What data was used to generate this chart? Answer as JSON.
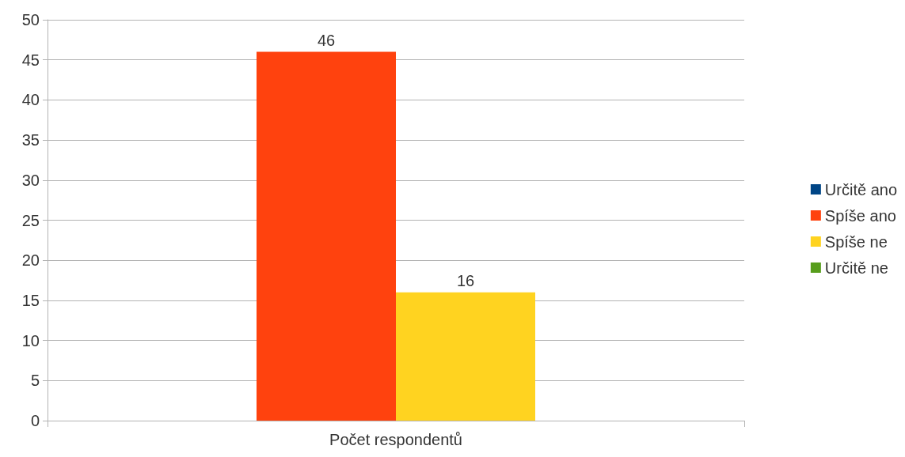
{
  "chart_data": {
    "type": "bar",
    "categories": [
      "Počet respondentů"
    ],
    "series": [
      {
        "name": "Určitě ano",
        "color": "#004586",
        "values": [
          0
        ],
        "value_labels": [
          null
        ]
      },
      {
        "name": "Spíše ano",
        "color": "#ff420e",
        "values": [
          46
        ],
        "value_labels": [
          "46"
        ]
      },
      {
        "name": "Spíše ne",
        "color": "#ffd320",
        "values": [
          16
        ],
        "value_labels": [
          "16"
        ]
      },
      {
        "name": "Určitě ne",
        "color": "#579d1c",
        "values": [
          0
        ],
        "value_labels": [
          null
        ]
      }
    ],
    "ylim": [
      0,
      50
    ],
    "yticks": [
      0,
      5,
      10,
      15,
      20,
      25,
      30,
      35,
      40,
      45,
      50
    ],
    "grid": "y",
    "legend": "right"
  }
}
